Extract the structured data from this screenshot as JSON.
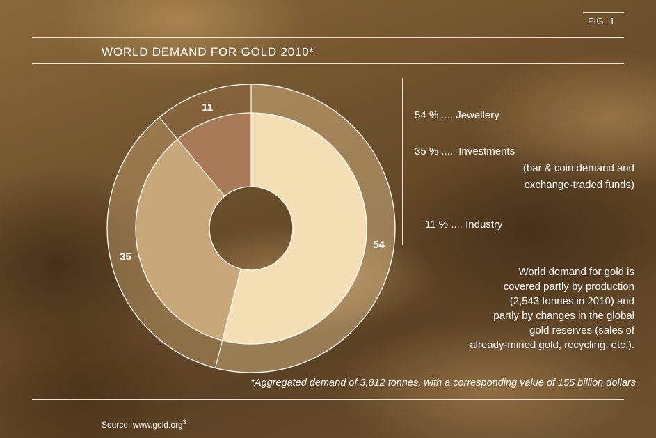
{
  "figure_label": "FIG. 1",
  "chart_data": {
    "type": "pie",
    "title": "WORLD DEMAND FOR GOLD 2010*",
    "categories": [
      "Jewellery",
      "Investments",
      "Industry"
    ],
    "values": [
      54,
      35,
      11
    ],
    "unit": "%",
    "colors": [
      "#f5e0b5",
      "#c8a779",
      "#a87a58"
    ]
  },
  "legend": [
    {
      "pct": "54 %",
      "dots": "....",
      "name": "Jewellery",
      "sub": []
    },
    {
      "pct": "35 %",
      "dots": "....",
      "name": "Investments",
      "sub": [
        "(bar & coin demand and",
        "exchange-traded funds)"
      ]
    },
    {
      "pct": "11 %",
      "dots": "....",
      "name": "Industry",
      "sub": []
    }
  ],
  "note_lines": [
    "World demand for gold is",
    "covered partly by production",
    "(2,543 tonnes in 2010) and",
    "partly by changes in the global",
    "gold reserves (sales of",
    "already-mined gold, recycling, etc.)."
  ],
  "footnote": "*Aggregated demand of 3,812 tonnes, with a corresponding value of 155 billion dollars",
  "source": {
    "text": "Source: www.gold.org",
    "sup": "3"
  }
}
